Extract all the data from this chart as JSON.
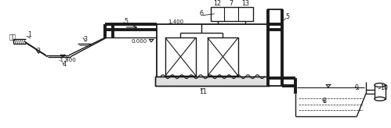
{
  "bg": "#ffffff",
  "lc": "#1a1a1a",
  "lw": 1.0,
  "tlw": 2.8,
  "fs": 5.8,
  "inlet_text": "进水",
  "elev_0": "0.000",
  "elev_1400": "1.400",
  "elev_neg1800": "-1.800",
  "nums": [
    "1",
    "2",
    "3",
    "4",
    "5",
    "5",
    "6",
    "7",
    "8",
    "9",
    "10",
    "11",
    "12",
    "13"
  ]
}
